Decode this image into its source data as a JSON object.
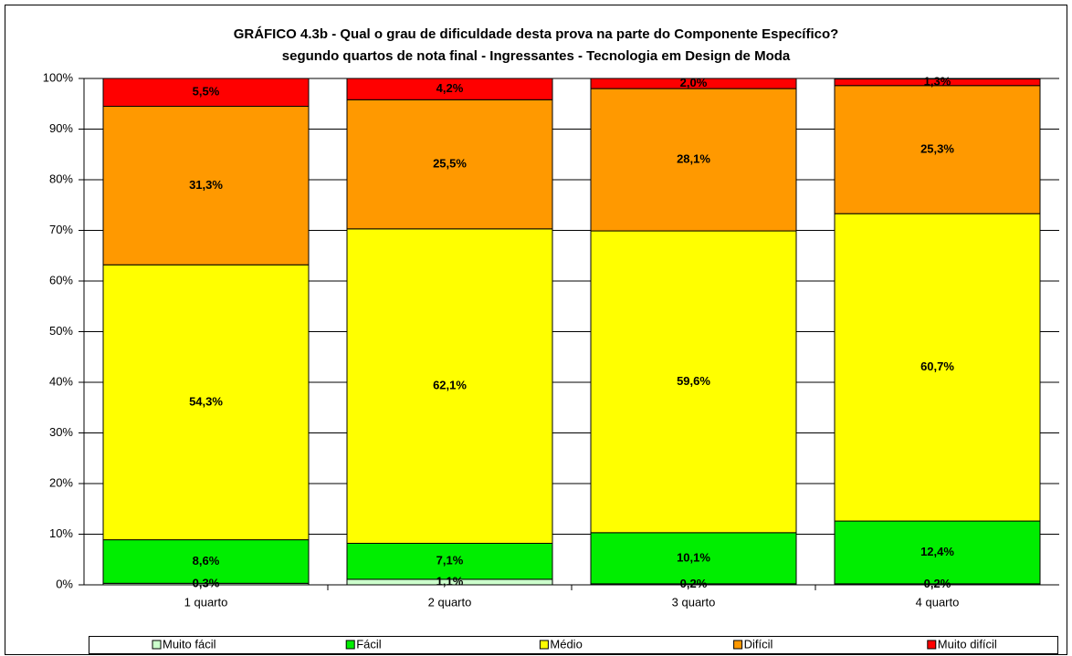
{
  "chart_data": {
    "type": "stacked_bar",
    "title": "GRÁFICO 4.3b - Qual o grau de dificuldade desta prova na parte do Componente Específico?",
    "subtitle": "segundo quartos de nota final  - Ingressantes - Tecnologia em Design de Moda",
    "categories": [
      "1 quarto",
      "2 quarto",
      "3 quarto",
      "4 quarto"
    ],
    "series": [
      {
        "name": "Muito fácil",
        "color": "#ccffcc",
        "values": [
          0.3,
          1.1,
          0.2,
          0.2
        ],
        "value_labels": [
          "0,3%",
          "1,1%",
          "0,2%",
          "0,2%"
        ]
      },
      {
        "name": "Fácil",
        "color": "#00ee00",
        "values": [
          8.6,
          7.1,
          10.1,
          12.4
        ],
        "value_labels": [
          "8,6%",
          "7,1%",
          "10,1%",
          "12,4%"
        ]
      },
      {
        "name": "Médio",
        "color": "#ffff00",
        "values": [
          54.3,
          62.1,
          59.6,
          60.7
        ],
        "value_labels": [
          "54,3%",
          "62,1%",
          "59,6%",
          "60,7%"
        ]
      },
      {
        "name": "Difícil",
        "color": "#ff9900",
        "values": [
          31.3,
          25.5,
          28.1,
          25.3
        ],
        "value_labels": [
          "31,3%",
          "25,5%",
          "28,1%",
          "25,3%"
        ]
      },
      {
        "name": "Muito difícil",
        "color": "#ff0000",
        "values": [
          5.5,
          4.2,
          2.0,
          1.3
        ],
        "value_labels": [
          "5,5%",
          "4,2%",
          "2,0%",
          "1,3%"
        ]
      }
    ],
    "ylim": [
      0,
      100
    ],
    "yticks": [
      {
        "value": 0,
        "label": "0%"
      },
      {
        "value": 10,
        "label": "10%"
      },
      {
        "value": 20,
        "label": "20%"
      },
      {
        "value": 30,
        "label": "30%"
      },
      {
        "value": 40,
        "label": "40%"
      },
      {
        "value": 50,
        "label": "50%"
      },
      {
        "value": 60,
        "label": "60%"
      },
      {
        "value": 70,
        "label": "70%"
      },
      {
        "value": 80,
        "label": "80%"
      },
      {
        "value": 90,
        "label": "90%"
      },
      {
        "value": 100,
        "label": "100%"
      }
    ],
    "grid": true,
    "legend": "bottom"
  }
}
